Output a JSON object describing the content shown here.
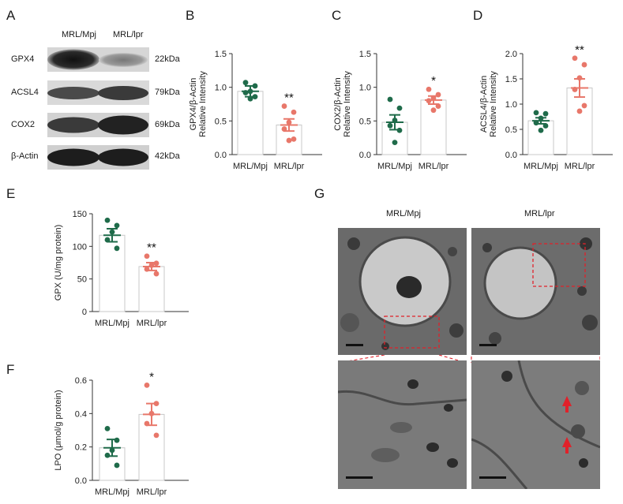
{
  "panels": {
    "A": "A",
    "B": "B",
    "C": "C",
    "D": "D",
    "E": "E",
    "F": "F",
    "G": "G"
  },
  "colors": {
    "control": "#1f6b4a",
    "lpr": "#e8776a",
    "bar_edge": "#c8c8c8",
    "axis": "#333333",
    "scale_bar": "#111111",
    "roi": "#e0212a"
  },
  "western_blot": {
    "lanes": [
      "MRL/Mpj",
      "MRL/lpr"
    ],
    "rows": [
      {
        "protein": "GPX4",
        "size": "22kDa"
      },
      {
        "protein": "ACSL4",
        "size": "79kDa"
      },
      {
        "protein": "COX2",
        "size": "69kDa"
      },
      {
        "protein": "β-Actin",
        "size": "42kDa"
      }
    ]
  },
  "tem": {
    "conditions": [
      "MRL/Mpj",
      "MRL/lpr"
    ]
  },
  "chart_data": [
    {
      "id": "B",
      "type": "bar",
      "categories": [
        "MRL/Mpj",
        "MRL/lpr"
      ],
      "ylabel": [
        "GPX4/β-Actin",
        "Relative Intensity"
      ],
      "ylim": [
        0,
        1.5
      ],
      "ticks": [
        0.0,
        0.5,
        1.0,
        1.5
      ],
      "tick_labels": [
        "0.0",
        "0.5",
        "1.0",
        "1.5"
      ],
      "means": [
        0.94,
        0.44
      ],
      "sem": [
        0.08,
        0.09
      ],
      "points": [
        [
          1.07,
          1.02,
          0.94,
          0.92,
          0.86,
          0.83
        ],
        [
          0.72,
          0.63,
          0.48,
          0.38,
          0.23,
          0.21
        ]
      ],
      "significance": [
        "",
        "**"
      ]
    },
    {
      "id": "C",
      "type": "bar",
      "categories": [
        "MRL/Mpj",
        "MRL/lpr"
      ],
      "ylabel": [
        "COX2/β-Actin",
        "Relative Intensity"
      ],
      "ylim": [
        0,
        1.5
      ],
      "ticks": [
        0.0,
        0.5,
        1.0,
        1.5
      ],
      "tick_labels": [
        "0.0",
        "0.5",
        "1.0",
        "1.5"
      ],
      "means": [
        0.48,
        0.81
      ],
      "sem": [
        0.11,
        0.06
      ],
      "points": [
        [
          0.82,
          0.69,
          0.51,
          0.43,
          0.36,
          0.18
        ],
        [
          0.97,
          0.89,
          0.84,
          0.8,
          0.72,
          0.66
        ]
      ],
      "significance": [
        "",
        "*"
      ]
    },
    {
      "id": "D",
      "type": "bar",
      "categories": [
        "MRL/Mpj",
        "MRL/lpr"
      ],
      "ylabel": [
        "ACSL4/β-Actin",
        "Relative Intensity"
      ],
      "ylim": [
        0,
        2.0
      ],
      "ticks": [
        0.0,
        0.5,
        1.0,
        1.5,
        2.0
      ],
      "tick_labels": [
        "0.0",
        "0.5",
        "1.0",
        "1.5",
        "2.0"
      ],
      "means": [
        0.67,
        1.32
      ],
      "sem": [
        0.06,
        0.18
      ],
      "points": [
        [
          0.83,
          0.81,
          0.72,
          0.63,
          0.57,
          0.48
        ],
        [
          1.91,
          1.78,
          1.52,
          1.29,
          0.97,
          0.86
        ]
      ],
      "significance": [
        "",
        "**"
      ]
    },
    {
      "id": "E",
      "type": "bar",
      "categories": [
        "MRL/Mpj",
        "MRL/lpr"
      ],
      "ylabel": [
        "GPX (U/mg protein)"
      ],
      "ylim": [
        0,
        150
      ],
      "ticks": [
        0,
        50,
        100,
        150
      ],
      "tick_labels": [
        "0",
        "50",
        "100",
        "150"
      ],
      "means": [
        117,
        69
      ],
      "sem": [
        10,
        6
      ],
      "points": [
        [
          140,
          132,
          122,
          110,
          97
        ],
        [
          85,
          74,
          71,
          65,
          58
        ]
      ],
      "significance": [
        "",
        "**"
      ]
    },
    {
      "id": "F",
      "type": "bar",
      "categories": [
        "MRL/Mpj",
        "MRL/lpr"
      ],
      "ylabel": [
        "LPO (μmol/g protein)"
      ],
      "ylim": [
        0,
        0.6
      ],
      "ticks": [
        0.0,
        0.2,
        0.4,
        0.6
      ],
      "tick_labels": [
        "0.0",
        "0.2",
        "0.4",
        "0.6"
      ],
      "means": [
        0.195,
        0.395
      ],
      "sem": [
        0.05,
        0.065
      ],
      "points": [
        [
          0.31,
          0.24,
          0.18,
          0.15,
          0.09
        ],
        [
          0.57,
          0.46,
          0.4,
          0.34,
          0.27
        ]
      ],
      "significance": [
        "",
        "*"
      ]
    }
  ]
}
